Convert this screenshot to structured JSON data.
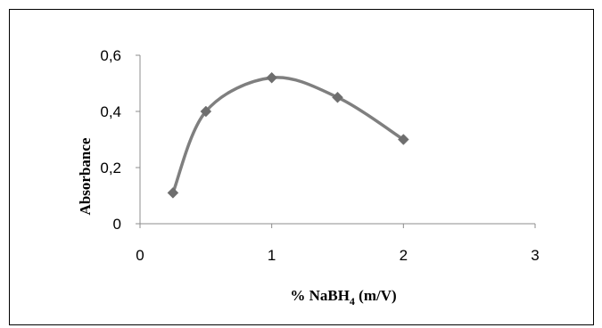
{
  "chart_data": {
    "type": "line",
    "title": "",
    "xlabel": "% NaBH",
    "xlabel_subscript": "4",
    "xlabel_suffix": " (m/V)",
    "ylabel": "Absorbance",
    "xlim": [
      0,
      3
    ],
    "ylim": [
      0,
      0.6
    ],
    "x_ticks": [
      0,
      1,
      2,
      3
    ],
    "x_tick_labels": [
      "0",
      "1",
      "2",
      "3"
    ],
    "y_ticks": [
      0,
      0.2,
      0.4,
      0.6
    ],
    "y_tick_labels": [
      "0",
      "0,2",
      "0,4",
      "0,6"
    ],
    "grid": false,
    "legend": "none",
    "smooth": true,
    "marker": "diamond",
    "colors": {
      "line": "#7f7f7f",
      "marker": "#6e6e6e",
      "axis": "#8c8c8c",
      "frame": "#000000"
    },
    "series": [
      {
        "x": [
          0.25,
          0.5,
          1.0,
          1.5,
          2.0
        ],
        "values": [
          0.11,
          0.4,
          0.52,
          0.45,
          0.3
        ]
      }
    ]
  }
}
